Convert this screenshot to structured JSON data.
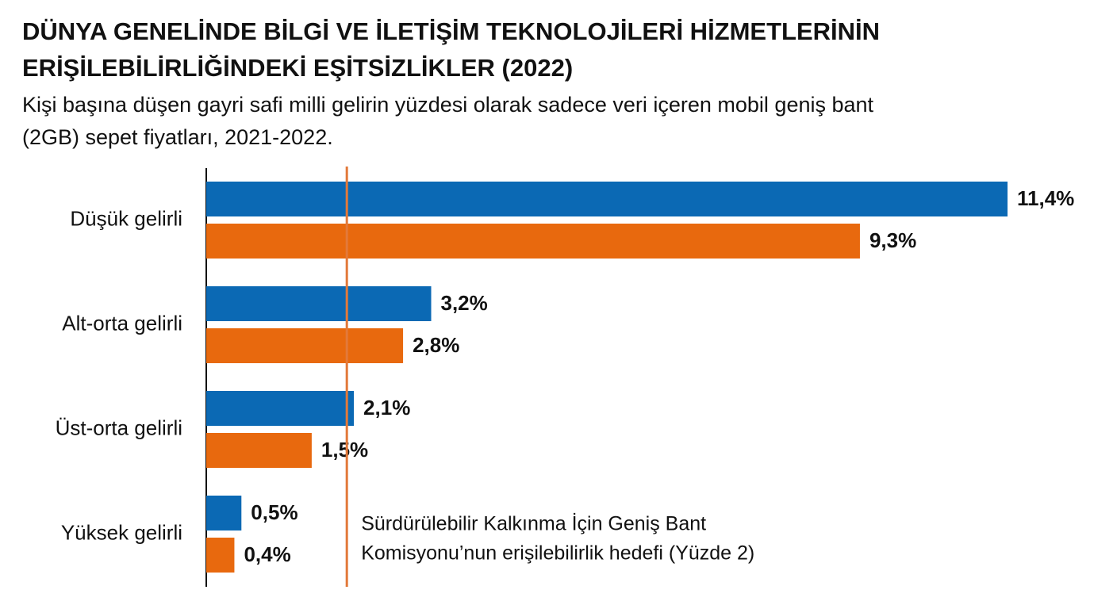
{
  "chart_data": {
    "type": "hbar",
    "title": [
      "DÜNYA GENELİNDE BİLGİ VE İLETİŞİM TEKNOLOJİLERİ HİZMETLERİNİN",
      "ERİŞİLEBİLİRLİĞİNDEKİ EŞİTSİZLİKLER (2022)"
    ],
    "subtitle": [
      "Kişi başına düşen gayri safi milli gelirin yüzdesi olarak sadece veri içeren mobil geniş bant",
      "(2GB) sepet fiyatları, 2021-2022."
    ],
    "categories": [
      "Düşük gelirli",
      "Alt-orta gelirli",
      "Üst-orta gelirli",
      "Yüksek gelirli"
    ],
    "series": [
      {
        "color": "#0b69b4",
        "values": [
          11.4,
          3.2,
          2.1,
          0.5
        ],
        "value_labels": [
          "11,4%",
          "3,2%",
          "2,1%",
          "0,5%"
        ]
      },
      {
        "color": "#e8690e",
        "values": [
          9.3,
          2.8,
          1.5,
          0.4
        ],
        "value_labels": [
          "9,3%",
          "2,8%",
          "1,5%",
          "0,4%"
        ]
      }
    ],
    "xlim": [
      0,
      11.4
    ],
    "reference_line": {
      "value": 2,
      "color": "#e2793a",
      "label": [
        "Sürdürülebilir Kalkınma İçin Geniş Bant",
        "Komisyonu’nun erişilebilirlik hedefi (Yüzde 2)"
      ]
    }
  }
}
